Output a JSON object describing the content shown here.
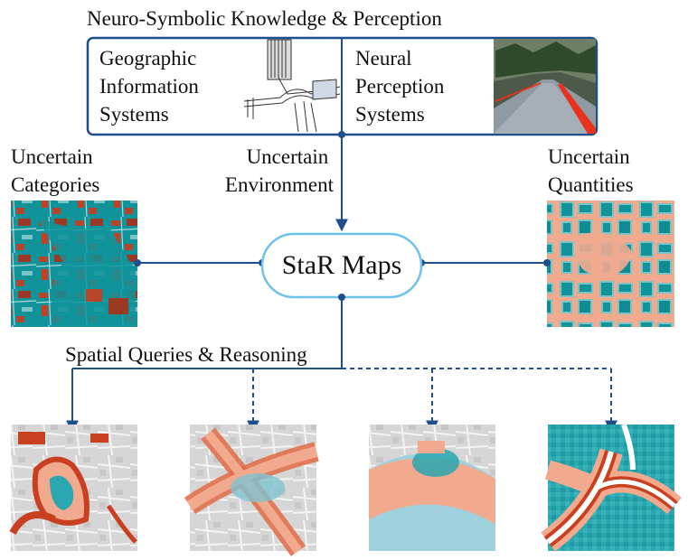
{
  "top_title": "Neuro-Symbolic Knowledge & Perception",
  "gis": {
    "lines": [
      "Geographic",
      "Information",
      "Systems"
    ]
  },
  "neural": {
    "lines": [
      "Neural",
      "Perception",
      "Systems"
    ]
  },
  "left_label": {
    "lines": [
      "Uncertain",
      "Categories"
    ]
  },
  "center_label": {
    "lines": [
      "Uncertain",
      "Environment"
    ]
  },
  "right_label": {
    "lines": [
      "Uncertain",
      "Quantities"
    ]
  },
  "center_node": "StaR Maps",
  "queries_label": "Spatial Queries & Reasoning",
  "colors": {
    "frame": "#1f4e8c",
    "pill": "#6ec1ea",
    "teal": "#10939a",
    "orange_red": "#c8401f",
    "salmon": "#f2aa8e",
    "map_gray": "#d9d9d9",
    "light_blue": "#9fd0dd"
  },
  "icons": [
    "road-intersection-map-icon",
    "road-photo-icon"
  ],
  "query_arrows": [
    "solid",
    "dashed",
    "dashed",
    "dashed"
  ]
}
